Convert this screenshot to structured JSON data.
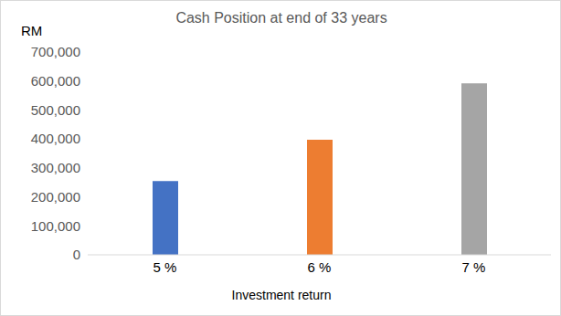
{
  "chart_data": {
    "type": "bar",
    "title": "Cash Position at end of 33 years",
    "y_label": "RM",
    "x_label": "Investment return",
    "categories": [
      "5 %",
      "6 %",
      "7 %"
    ],
    "values": [
      255000,
      397000,
      592000
    ],
    "colors": [
      "#4472c4",
      "#ed7d31",
      "#a5a5a5"
    ],
    "ylim": [
      0,
      700000
    ],
    "yticks": [
      0,
      {
        "value": 100000,
        "label": "100,000"
      },
      {
        "value": 200000,
        "label": "200,000"
      },
      {
        "value": 300000,
        "label": "300,000"
      },
      {
        "value": 400000,
        "label": "400,000"
      },
      {
        "value": 500000,
        "label": "500,000"
      },
      {
        "value": 600000,
        "label": "600,000"
      },
      {
        "value": 700000,
        "label": "700,000"
      }
    ],
    "grid": false
  }
}
